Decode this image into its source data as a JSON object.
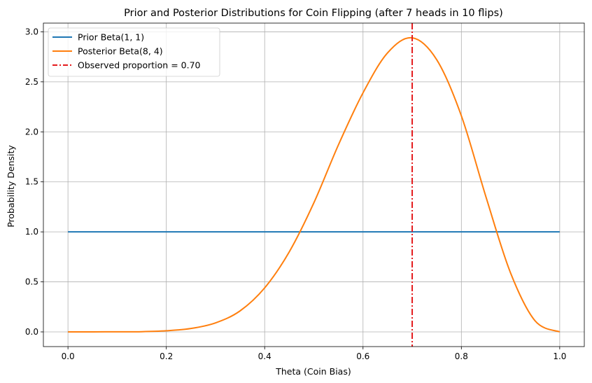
{
  "chart_data": {
    "type": "line",
    "title": "Prior and Posterior Distributions for Coin Flipping (after 7 heads in 10 flips)",
    "xlabel": "Theta (Coin Bias)",
    "ylabel": "Probability Density",
    "xlim": [
      -0.05,
      1.05
    ],
    "ylim": [
      -0.147,
      3.087
    ],
    "xticks": [
      0.0,
      0.2,
      0.4,
      0.6,
      0.8,
      1.0
    ],
    "xtick_labels": [
      "0.0",
      "0.2",
      "0.4",
      "0.6",
      "0.8",
      "1.0"
    ],
    "yticks": [
      0.0,
      0.5,
      1.0,
      1.5,
      2.0,
      2.5,
      3.0
    ],
    "ytick_labels": [
      "0.0",
      "0.5",
      "1.0",
      "1.5",
      "2.0",
      "2.5",
      "3.0"
    ],
    "grid": true,
    "legend_position": "top-left",
    "series": [
      {
        "name": "Prior Beta(1, 1)",
        "color": "#1f77b4",
        "style": "solid",
        "x": [
          0.0,
          0.1,
          0.2,
          0.3,
          0.4,
          0.5,
          0.6,
          0.7,
          0.8,
          0.9,
          1.0
        ],
        "y": [
          1.0,
          1.0,
          1.0,
          1.0,
          1.0,
          1.0,
          1.0,
          1.0,
          1.0,
          1.0,
          1.0
        ]
      },
      {
        "name": "Posterior Beta(8, 4)",
        "color": "#ff7f0e",
        "style": "solid",
        "x": [
          0.0,
          0.05,
          0.1,
          0.15,
          0.2,
          0.25,
          0.3,
          0.35,
          0.4,
          0.45,
          0.5,
          0.55,
          0.6,
          0.65,
          0.7,
          0.75,
          0.8,
          0.85,
          0.9,
          0.95,
          1.0
        ],
        "y": [
          0.0,
          0.0,
          0.001,
          0.002,
          0.011,
          0.034,
          0.09,
          0.21,
          0.44,
          0.8,
          1.29,
          1.87,
          2.39,
          2.79,
          2.94,
          2.72,
          2.16,
          1.35,
          0.59,
          0.11,
          0.0
        ]
      },
      {
        "name": "Observed proportion = 0.70",
        "color": "#e41a1c",
        "style": "dashdot",
        "type": "vline",
        "x": 0.7
      }
    ]
  }
}
